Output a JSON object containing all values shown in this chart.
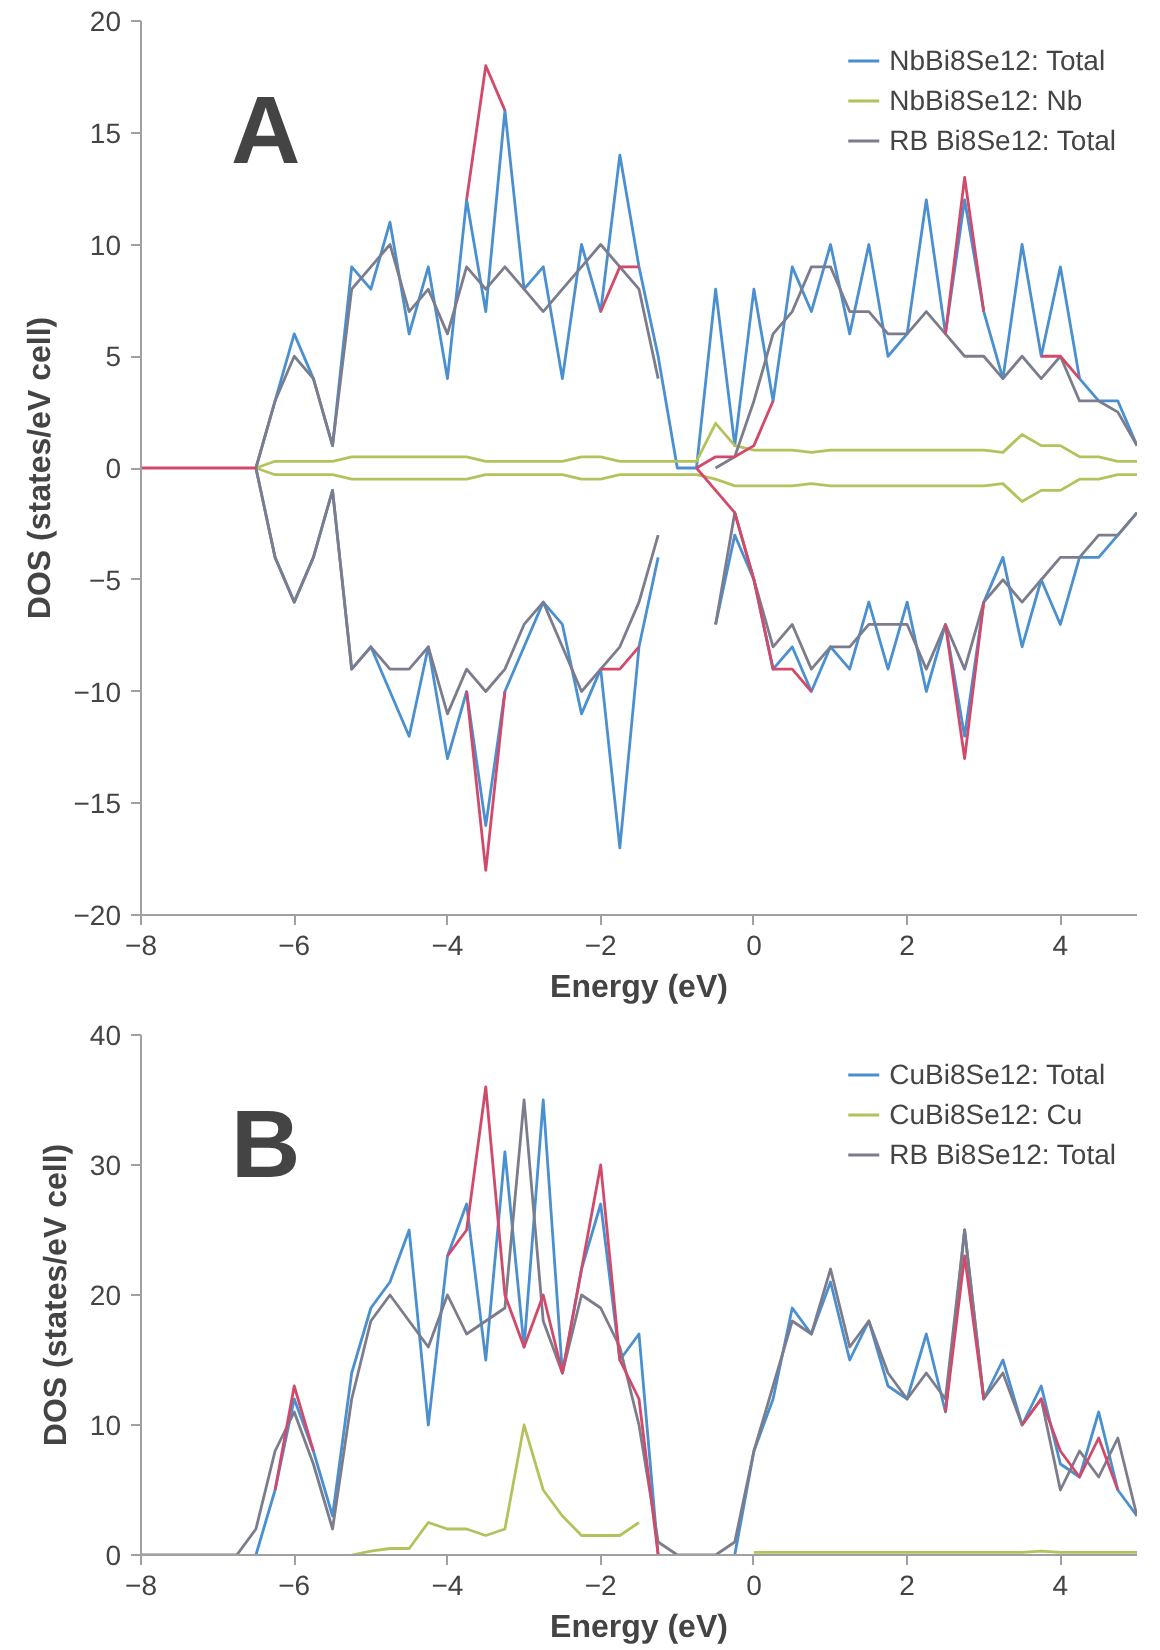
{
  "chart_data": [
    {
      "type": "line",
      "annotations": [
        "A"
      ],
      "xlabel": "Energy (eV)",
      "ylabel": "DOS (states/eV cell)",
      "xlim": [
        -8,
        5
      ],
      "ylim": [
        -20,
        20
      ],
      "xticks": [
        -8,
        -6,
        -4,
        -2,
        0,
        2,
        4
      ],
      "yticks": [
        -20,
        -15,
        -10,
        -5,
        0,
        5,
        10,
        15,
        20
      ],
      "grid": false,
      "legend": "top right",
      "line_style": "solid",
      "marker": "none",
      "x": [
        -8,
        -7.75,
        -7.5,
        -7.25,
        -7,
        -6.75,
        -6.5,
        -6.25,
        -6,
        -5.75,
        -5.5,
        -5.25,
        -5,
        -4.75,
        -4.5,
        -4.25,
        -4,
        -3.75,
        -3.5,
        -3.25,
        -3,
        -2.75,
        -2.5,
        -2.25,
        -2,
        -1.75,
        -1.5,
        -1.25,
        -1,
        -0.75,
        -0.5,
        -0.25,
        0,
        0.25,
        0.5,
        0.75,
        1,
        1.25,
        1.5,
        1.75,
        2,
        2.25,
        2.5,
        2.75,
        3,
        3.25,
        3.5,
        3.75,
        4,
        4.25,
        4.5,
        4.75,
        5
      ],
      "series": [
        {
          "name": "NbBi8Se12: Total",
          "color": "#4a8fd0",
          "values": [
            null,
            null,
            null,
            null,
            null,
            null,
            0,
            3,
            6,
            4,
            1,
            9,
            8,
            11,
            6,
            9,
            4,
            12,
            7,
            16,
            8,
            9,
            4,
            10,
            7,
            14,
            9,
            5,
            0,
            0,
            8,
            1,
            8,
            3,
            9,
            7,
            10,
            6,
            10,
            5,
            6,
            12,
            6,
            12,
            7,
            4,
            10,
            5,
            9,
            4,
            3,
            3,
            1
          ]
        },
        {
          "color": "#4a8fd0",
          "values": [
            null,
            null,
            null,
            null,
            null,
            null,
            0,
            -4,
            -6,
            -4,
            -1,
            -9,
            -8,
            -10,
            -12,
            -8,
            -13,
            -10,
            -16,
            -10,
            -8,
            -6,
            -7,
            -11,
            -9,
            -17,
            -8,
            -4,
            null,
            null,
            -7,
            -3,
            -5,
            -9,
            -8,
            -10,
            -8,
            -9,
            -6,
            -9,
            -6,
            -10,
            -7,
            -12,
            -6,
            -4,
            -8,
            -5,
            -7,
            -4,
            -4,
            -3,
            -2
          ]
        },
        {
          "name": "NbBi8Se12: Nb",
          "color": "#b5c25c",
          "values": [
            null,
            null,
            null,
            null,
            null,
            null,
            0,
            0.3,
            0.3,
            0.3,
            0.3,
            0.5,
            0.5,
            0.5,
            0.5,
            0.5,
            0.5,
            0.5,
            0.3,
            0.3,
            0.3,
            0.3,
            0.3,
            0.5,
            0.5,
            0.3,
            0.3,
            0.3,
            0.3,
            0.3,
            2,
            1,
            0.8,
            0.8,
            0.8,
            0.7,
            0.8,
            0.8,
            0.8,
            0.8,
            0.8,
            0.8,
            0.8,
            0.8,
            0.8,
            0.7,
            1.5,
            1,
            1,
            0.5,
            0.5,
            0.3,
            0.3
          ]
        },
        {
          "color": "#b5c25c",
          "values": [
            null,
            null,
            null,
            null,
            null,
            null,
            0,
            -0.3,
            -0.3,
            -0.3,
            -0.3,
            -0.5,
            -0.5,
            -0.5,
            -0.5,
            -0.5,
            -0.5,
            -0.5,
            -0.3,
            -0.3,
            -0.3,
            -0.3,
            -0.3,
            -0.5,
            -0.5,
            -0.3,
            -0.3,
            -0.3,
            -0.3,
            -0.3,
            -0.5,
            -0.8,
            -0.8,
            -0.8,
            -0.8,
            -0.7,
            -0.8,
            -0.8,
            -0.8,
            -0.8,
            -0.8,
            -0.8,
            -0.8,
            -0.8,
            -0.8,
            -0.7,
            -1.5,
            -1,
            -1,
            -0.5,
            -0.5,
            -0.3,
            -0.3
          ]
        },
        {
          "name": "RB Bi8Se12: Total",
          "color": "#7b7c8c",
          "values": [
            null,
            null,
            null,
            null,
            null,
            null,
            0,
            3,
            5,
            4,
            1,
            8,
            9,
            10,
            7,
            8,
            6,
            9,
            8,
            9,
            8,
            7,
            8,
            9,
            10,
            9,
            8,
            4,
            null,
            null,
            0,
            0.5,
            3,
            6,
            7,
            9,
            9,
            7,
            7,
            6,
            6,
            7,
            6,
            5,
            5,
            4,
            5,
            4,
            5,
            3,
            3,
            2.5,
            1
          ]
        },
        {
          "color": "#7b7c8c",
          "values": [
            null,
            null,
            null,
            null,
            null,
            null,
            0,
            -4,
            -6,
            -4,
            -1,
            -9,
            -8,
            -9,
            -9,
            -8,
            -11,
            -9,
            -10,
            -9,
            -7,
            -6,
            -8,
            -10,
            -9,
            -8,
            -6,
            -3,
            null,
            null,
            -7,
            -2,
            -5,
            -8,
            -7,
            -9,
            -8,
            -8,
            -7,
            -7,
            -7,
            -9,
            -7,
            -9,
            -6,
            -5,
            -6,
            -5,
            -4,
            -4,
            -3,
            -3,
            -2
          ]
        },
        {
          "color": "#d24a6a",
          "values": [
            0,
            0,
            0,
            0,
            0,
            0,
            0,
            null,
            null,
            null,
            null,
            null,
            null,
            null,
            null,
            null,
            null,
            12,
            18,
            16,
            null,
            null,
            null,
            null,
            7,
            9,
            9,
            null,
            null,
            0,
            0.5,
            0.5,
            1,
            3,
            null,
            null,
            null,
            null,
            null,
            null,
            null,
            null,
            6,
            13,
            7,
            null,
            null,
            5,
            5,
            4,
            null,
            null,
            null
          ]
        },
        {
          "color": "#d24a6a",
          "values": [
            null,
            null,
            null,
            null,
            null,
            null,
            null,
            null,
            null,
            null,
            null,
            null,
            null,
            null,
            null,
            null,
            null,
            -10,
            -18,
            -10,
            null,
            null,
            null,
            null,
            -9,
            -9,
            -8,
            null,
            null,
            0,
            -1,
            -2,
            -5,
            -9,
            -9,
            -10,
            null,
            null,
            null,
            null,
            null,
            null,
            -7,
            -13,
            -6,
            null,
            null,
            null,
            null,
            null,
            null,
            null,
            null
          ]
        }
      ]
    },
    {
      "type": "line",
      "annotations": [
        "B"
      ],
      "xlabel": "Energy (eV)",
      "ylabel": "DOS (states/eV cell)",
      "xlim": [
        -8,
        5
      ],
      "ylim": [
        0,
        40
      ],
      "xticks": [
        -8,
        -6,
        -4,
        -2,
        0,
        2,
        4
      ],
      "yticks": [
        0,
        10,
        20,
        30,
        40
      ],
      "grid": false,
      "legend": "top right",
      "line_style": "solid",
      "marker": "none",
      "x": [
        -8,
        -7.75,
        -7.5,
        -7.25,
        -7,
        -6.75,
        -6.5,
        -6.25,
        -6,
        -5.75,
        -5.5,
        -5.25,
        -5,
        -4.75,
        -4.5,
        -4.25,
        -4,
        -3.75,
        -3.5,
        -3.25,
        -3,
        -2.75,
        -2.5,
        -2.25,
        -2,
        -1.75,
        -1.5,
        -1.25,
        -1,
        -0.75,
        -0.5,
        -0.25,
        0,
        0.25,
        0.5,
        0.75,
        1,
        1.25,
        1.5,
        1.75,
        2,
        2.25,
        2.5,
        2.75,
        3,
        3.25,
        3.5,
        3.75,
        4,
        4.25,
        4.5,
        4.75,
        5
      ],
      "series": [
        {
          "name": "CuBi8Se12: Total",
          "color": "#4a8fd0",
          "values": [
            null,
            null,
            null,
            null,
            null,
            null,
            0,
            5,
            12,
            8,
            3,
            14,
            19,
            21,
            25,
            10,
            23,
            27,
            15,
            31,
            16,
            35,
            14,
            22,
            27,
            15,
            17,
            0,
            null,
            null,
            null,
            0,
            8,
            12,
            19,
            17,
            21,
            15,
            18,
            13,
            12,
            17,
            11,
            25,
            12,
            15,
            10,
            13,
            7,
            6,
            11,
            5,
            3
          ]
        },
        {
          "name": "CuBi8Se12: Cu",
          "color": "#b5c25c",
          "values": [
            null,
            null,
            null,
            null,
            null,
            null,
            null,
            null,
            null,
            null,
            null,
            0,
            0.3,
            0.5,
            0.5,
            2.5,
            2,
            2,
            1.5,
            2,
            10,
            5,
            3,
            1.5,
            1.5,
            1.5,
            2.5,
            null,
            null,
            null,
            null,
            null,
            0.2,
            0.2,
            0.2,
            0.2,
            0.2,
            0.2,
            0.2,
            0.2,
            0.2,
            0.2,
            0.2,
            0.2,
            0.2,
            0.2,
            0.2,
            0.3,
            0.2,
            0.2,
            0.2,
            0.2,
            0.2
          ]
        },
        {
          "name": "RB Bi8Se12: Total",
          "color": "#7b7c8c",
          "values": [
            0,
            0,
            0,
            0,
            0,
            0,
            2,
            8,
            11,
            7,
            2,
            12,
            18,
            20,
            18,
            16,
            20,
            17,
            18,
            19,
            35,
            18,
            14,
            20,
            19,
            16,
            10,
            1,
            0,
            0,
            0,
            1,
            8,
            13,
            18,
            17,
            22,
            16,
            18,
            14,
            12,
            14,
            12,
            25,
            12,
            14,
            10,
            12,
            5,
            8,
            6,
            9,
            3
          ]
        },
        {
          "color": "#d24a6a",
          "values": [
            null,
            null,
            null,
            null,
            null,
            null,
            null,
            5,
            13,
            8,
            null,
            null,
            null,
            null,
            null,
            null,
            23,
            25,
            36,
            20,
            16,
            20,
            14,
            22,
            30,
            15,
            12,
            0,
            null,
            null,
            null,
            null,
            null,
            null,
            null,
            null,
            null,
            null,
            null,
            null,
            null,
            null,
            11,
            23,
            12,
            null,
            10,
            12,
            8,
            6,
            9,
            5,
            null
          ]
        }
      ]
    }
  ]
}
